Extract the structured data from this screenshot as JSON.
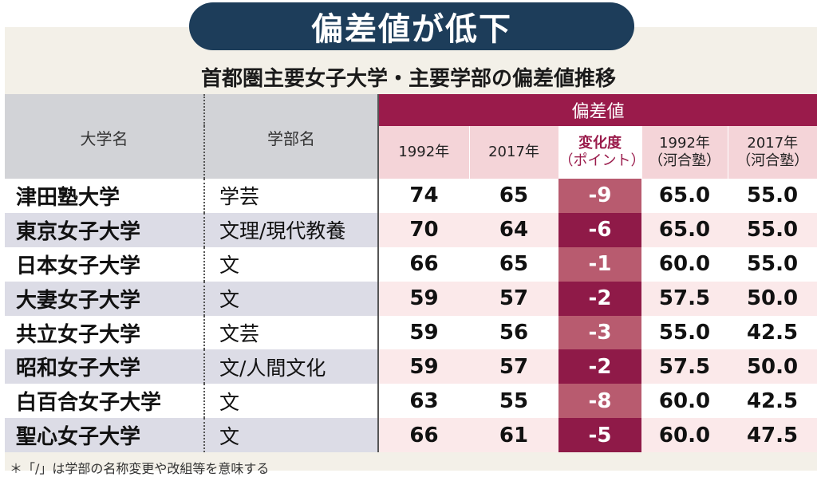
{
  "title": "偏差値が低下",
  "subtitle": "首都圏主要女子大学・主要学部の偏差値推移",
  "header": {
    "col_university": "大学名",
    "col_faculty": "学部名",
    "group_label": "偏差値",
    "y1992": "1992年",
    "y2017": "2017年",
    "change_line1": "変化度",
    "change_line2": "（ポイント）",
    "kawai1992_line1": "1992年",
    "kawai1992_line2": "（河合塾）",
    "kawai2017_line1": "2017年",
    "kawai2017_line2": "（河合塾）"
  },
  "rows": [
    {
      "university": "津田塾大学",
      "faculty": "学芸",
      "v1992": "74",
      "v2017": "65",
      "change": "-9",
      "k1992": "65.0",
      "k2017": "55.0"
    },
    {
      "university": "東京女子大学",
      "faculty": "文理/現代教養",
      "v1992": "70",
      "v2017": "64",
      "change": "-6",
      "k1992": "65.0",
      "k2017": "55.0"
    },
    {
      "university": "日本女子大学",
      "faculty": "文",
      "v1992": "66",
      "v2017": "65",
      "change": "-1",
      "k1992": "60.0",
      "k2017": "55.0"
    },
    {
      "university": "大妻女子大学",
      "faculty": "文",
      "v1992": "59",
      "v2017": "57",
      "change": "-2",
      "k1992": "57.5",
      "k2017": "50.0"
    },
    {
      "university": "共立女子大学",
      "faculty": "文芸",
      "v1992": "59",
      "v2017": "56",
      "change": "-3",
      "k1992": "55.0",
      "k2017": "42.5"
    },
    {
      "university": "昭和女子大学",
      "faculty": "文/人間文化",
      "v1992": "59",
      "v2017": "57",
      "change": "-2",
      "k1992": "57.5",
      "k2017": "50.0"
    },
    {
      "university": "白百合女子大学",
      "faculty": "文",
      "v1992": "63",
      "v2017": "55",
      "change": "-8",
      "k1992": "60.0",
      "k2017": "42.5"
    },
    {
      "university": "聖心女子大学",
      "faculty": "文",
      "v1992": "66",
      "v2017": "61",
      "change": "-5",
      "k1992": "60.0",
      "k2017": "47.5"
    }
  ],
  "footnote": "＊「/」は学部の名称変更や改組等を意味する",
  "colors": {
    "badge_bg": "#1d3d5a",
    "maroon": "#9a1b4b",
    "change_light": "#b85b6f",
    "change_dark": "#8f1a48"
  }
}
